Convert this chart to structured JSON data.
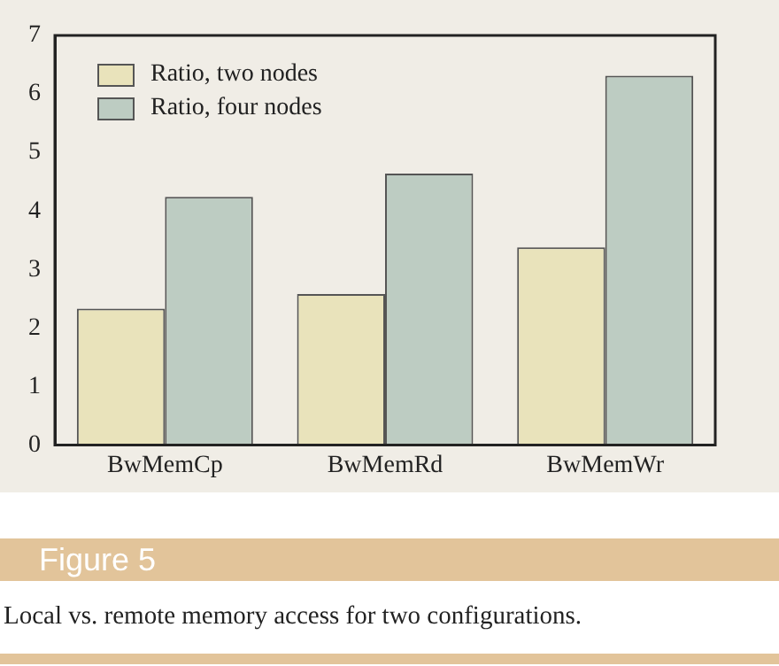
{
  "chart_data": {
    "type": "bar",
    "title": "Figure 5",
    "annotations": [
      "Local vs. remote memory access for two configurations."
    ],
    "categories": [
      "BwMemCp",
      "BwMemRd",
      "BwMemWr"
    ],
    "series": [
      {
        "name": "Ratio, two nodes",
        "color": "#e9e3bb",
        "values": [
          2.33,
          2.58,
          3.38
        ]
      },
      {
        "name": "Ratio, four nodes",
        "color": "#bdccc2",
        "values": [
          4.24,
          4.64,
          6.31
        ]
      }
    ],
    "ylim": [
      0,
      7
    ],
    "yticks": [
      0,
      1,
      2,
      3,
      4,
      5,
      6,
      7
    ],
    "grid": false,
    "legend": "top left"
  }
}
